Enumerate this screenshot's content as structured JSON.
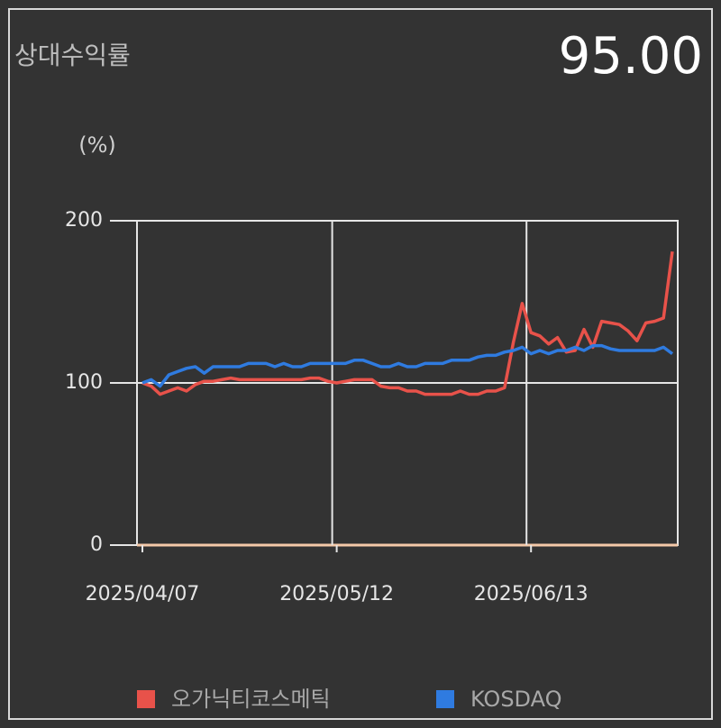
{
  "header": {
    "title": "상대수익률",
    "value": "95.00"
  },
  "chart_data": {
    "type": "line",
    "y_label": "(%)",
    "categories": [
      "2025/04/07",
      null,
      null,
      null,
      null,
      null,
      null,
      null,
      null,
      null,
      null,
      null,
      null,
      null,
      null,
      null,
      null,
      null,
      null,
      null,
      null,
      null,
      "2025/05/12",
      null,
      null,
      null,
      null,
      null,
      null,
      null,
      null,
      null,
      null,
      null,
      null,
      null,
      null,
      null,
      null,
      null,
      null,
      null,
      null,
      null,
      "2025/06/13",
      null,
      null,
      null,
      null,
      null,
      null,
      null,
      null,
      null,
      null,
      null,
      null,
      null,
      null,
      null,
      null
    ],
    "series": [
      {
        "name": "오가닉티코스메틱",
        "color": "#e8524a",
        "values": [
          100,
          98,
          93,
          95,
          97,
          95,
          99,
          101,
          101,
          102,
          103,
          102,
          102,
          102,
          102,
          102,
          102,
          102,
          102,
          103,
          103,
          101,
          100,
          101,
          102,
          102,
          102,
          98,
          97,
          97,
          95,
          95,
          93,
          93,
          93,
          93,
          95,
          93,
          93,
          95,
          95,
          97,
          125,
          149,
          131,
          129,
          124,
          128,
          119,
          120,
          133,
          122,
          138,
          137,
          136,
          132,
          126,
          137,
          138,
          140,
          181
        ]
      },
      {
        "name": "KOSDAQ",
        "color": "#2f7be0",
        "values": [
          100,
          102,
          98,
          105,
          107,
          109,
          110,
          106,
          110,
          110,
          110,
          110,
          112,
          112,
          112,
          110,
          112,
          110,
          110,
          112,
          112,
          112,
          112,
          112,
          114,
          114,
          112,
          110,
          110,
          112,
          110,
          110,
          112,
          112,
          112,
          114,
          114,
          114,
          116,
          117,
          117,
          119,
          120,
          122,
          118,
          120,
          118,
          120,
          120,
          122,
          120,
          123,
          123,
          121,
          120,
          120,
          120,
          120,
          120,
          122,
          118
        ]
      }
    ],
    "ylim": [
      0,
      200
    ],
    "yticks": [
      0,
      100,
      200
    ],
    "grid": true
  }
}
